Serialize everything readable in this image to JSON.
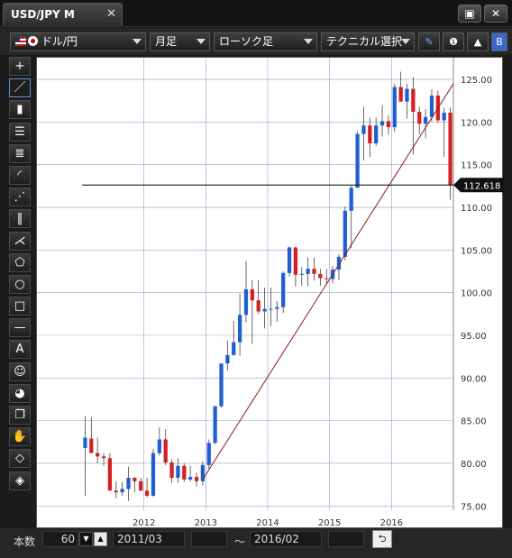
{
  "tab": {
    "title": "USD/JPY M",
    "close": "✕"
  },
  "window": {
    "maximize": "▣",
    "close": "✕"
  },
  "toolbar": {
    "symbol": "ドル/円",
    "period": "月足",
    "chart_type": "ローソク足",
    "technical": "テクニカル選択",
    "pen_icon": "✎",
    "info_icon": "❶",
    "chart_icon": "▲",
    "overflow_label": "B"
  },
  "sidebar": {
    "tools": [
      {
        "name": "crosshair-icon",
        "glyph": "+"
      },
      {
        "name": "trendline-icon",
        "glyph": "／"
      },
      {
        "name": "ruler-icon",
        "glyph": "▮"
      },
      {
        "name": "horizontal-lines-icon",
        "glyph": "☰"
      },
      {
        "name": "fibonacci-lines-icon",
        "glyph": "≣"
      },
      {
        "name": "fan-arcs-icon",
        "glyph": "◜"
      },
      {
        "name": "fan-lines-icon",
        "glyph": "⋰"
      },
      {
        "name": "vertical-lines-icon",
        "glyph": "‖"
      },
      {
        "name": "andrews-pitchfork-icon",
        "glyph": "⋌"
      },
      {
        "name": "pentagon-icon",
        "glyph": "⬠"
      },
      {
        "name": "circle-icon",
        "glyph": "○"
      },
      {
        "name": "rectangle-icon",
        "glyph": "□"
      },
      {
        "name": "horizontal-line-icon",
        "glyph": "—"
      },
      {
        "name": "text-tool-icon",
        "glyph": "A"
      },
      {
        "name": "icon-stamp-icon",
        "glyph": "☺"
      },
      {
        "name": "undo-draw-icon",
        "glyph": "◕"
      },
      {
        "name": "copy-icon",
        "glyph": "❐"
      },
      {
        "name": "hand-icon",
        "glyph": "✋"
      },
      {
        "name": "eraser-icon",
        "glyph": "◇"
      },
      {
        "name": "erase-all-icon",
        "glyph": "◈"
      }
    ]
  },
  "footer": {
    "count_label": "本数",
    "count_value": "60",
    "start": "2011/03",
    "tilde": "〜",
    "end": "2016/02",
    "reload_icon": "⮌"
  },
  "colors": {
    "up": "#1f5fd6",
    "down": "#d42020",
    "grid": "#9aa0c8",
    "trend": "#8b1a1a"
  },
  "chart_data": {
    "type": "candlestick",
    "x": [
      "2011/03",
      "2011/04",
      "2011/05",
      "2011/06",
      "2011/07",
      "2011/08",
      "2011/09",
      "2011/10",
      "2011/11",
      "2011/12",
      "2012/01",
      "2012/02",
      "2012/03",
      "2012/04",
      "2012/05",
      "2012/06",
      "2012/07",
      "2012/08",
      "2012/09",
      "2012/10",
      "2012/11",
      "2012/12",
      "2013/01",
      "2013/02",
      "2013/03",
      "2013/04",
      "2013/05",
      "2013/06",
      "2013/07",
      "2013/08",
      "2013/09",
      "2013/10",
      "2013/11",
      "2013/12",
      "2014/01",
      "2014/02",
      "2014/03",
      "2014/04",
      "2014/05",
      "2014/06",
      "2014/07",
      "2014/08",
      "2014/09",
      "2014/10",
      "2014/11",
      "2014/12",
      "2015/01",
      "2015/02",
      "2015/03",
      "2015/04",
      "2015/05",
      "2015/06",
      "2015/07",
      "2015/08",
      "2015/09",
      "2015/10",
      "2015/11",
      "2015/12",
      "2016/01",
      "2016/02"
    ],
    "open": [
      81.8,
      82.9,
      81.2,
      80.8,
      80.6,
      76.8,
      76.6,
      77.0,
      78.3,
      77.9,
      76.8,
      76.2,
      81.2,
      82.8,
      80.1,
      78.3,
      79.7,
      78.1,
      78.4,
      77.9,
      79.8,
      82.4,
      86.7,
      91.7,
      92.7,
      94.2,
      97.4,
      100.4,
      99.1,
      97.8,
      98.1,
      98.1,
      98.3,
      102.3,
      105.3,
      102.1,
      102.2,
      102.8,
      102.2,
      101.7,
      101.6,
      102.7,
      104.2,
      109.6,
      112.3,
      118.6,
      119.6,
      117.5,
      119.6,
      120.1,
      119.4,
      124.1,
      122.4,
      123.9,
      121.2,
      119.8,
      120.6,
      123.1,
      120.2,
      121.1
    ],
    "high": [
      85.5,
      85.4,
      83.0,
      81.2,
      81.2,
      77.9,
      77.8,
      79.6,
      78.4,
      78.3,
      78.3,
      81.7,
      84.2,
      84.0,
      80.4,
      80.6,
      80.0,
      79.7,
      78.9,
      80.2,
      82.8,
      86.6,
      91.3,
      94.4,
      96.7,
      99.9,
      103.7,
      101.5,
      101.5,
      100.6,
      100.6,
      99.0,
      102.5,
      105.4,
      105.4,
      103.0,
      104.1,
      104.1,
      102.8,
      102.8,
      103.1,
      104.5,
      110.1,
      112.5,
      118.9,
      121.8,
      120.5,
      120.5,
      122.0,
      120.8,
      124.5,
      125.9,
      124.5,
      125.3,
      121.8,
      121.5,
      123.8,
      123.7,
      121.7,
      121.7
    ],
    "low": [
      76.2,
      81.2,
      80.0,
      79.7,
      77.3,
      75.9,
      76.2,
      75.6,
      76.6,
      76.8,
      76.0,
      76.1,
      80.9,
      79.8,
      77.7,
      77.7,
      77.8,
      77.9,
      77.3,
      77.4,
      79.4,
      82.2,
      86.5,
      90.9,
      92.6,
      92.6,
      96.5,
      94.0,
      97.5,
      95.8,
      96.1,
      96.6,
      97.6,
      101.9,
      100.7,
      100.8,
      100.8,
      101.4,
      100.8,
      101.1,
      101.1,
      101.5,
      103.8,
      105.2,
      112.3,
      115.5,
      115.9,
      117.2,
      118.3,
      118.5,
      118.9,
      122.4,
      120.4,
      116.2,
      118.6,
      118.1,
      120.1,
      119.9,
      115.9,
      110.9
    ],
    "close": [
      83.0,
      81.2,
      80.8,
      80.6,
      76.8,
      76.6,
      77.0,
      78.3,
      77.9,
      76.8,
      76.2,
      81.2,
      82.8,
      80.1,
      78.3,
      79.7,
      78.1,
      78.4,
      77.9,
      79.8,
      82.4,
      86.7,
      91.7,
      92.7,
      94.2,
      97.4,
      100.4,
      99.1,
      97.8,
      98.1,
      98.1,
      98.3,
      102.3,
      105.3,
      102.1,
      102.2,
      102.8,
      102.2,
      101.7,
      101.6,
      102.7,
      104.2,
      109.6,
      112.3,
      118.6,
      119.6,
      117.5,
      119.6,
      120.1,
      119.4,
      124.1,
      122.4,
      123.9,
      121.2,
      119.8,
      120.6,
      123.1,
      120.2,
      121.1,
      112.6
    ],
    "ylim": [
      74.5,
      126.7
    ],
    "y_ticks": [
      75,
      80,
      85,
      90,
      95,
      100,
      105,
      110,
      115,
      120,
      125
    ],
    "y_tick_labels": [
      "75.00",
      "80.00",
      "85.00",
      "90.00",
      "95.00",
      "100.00",
      "105.00",
      "110.00",
      "115.00",
      "120.00",
      "125.00"
    ],
    "x_ticks": [
      "2012",
      "2013",
      "2014",
      "2015",
      "2016"
    ],
    "x_tick_index": [
      9.5,
      19.5,
      29.5,
      39.5,
      49.5
    ],
    "current_price": 112.618,
    "current_price_label": "112.618",
    "trendline": {
      "from": {
        "x": "2012/10",
        "y": 78.1
      },
      "to": {
        "x": "2016/02",
        "y": 124.5
      }
    },
    "grid": true
  }
}
